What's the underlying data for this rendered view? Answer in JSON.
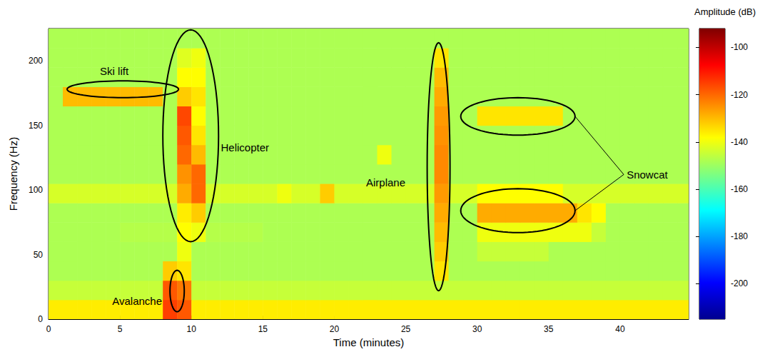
{
  "chart_data": {
    "type": "heatmap",
    "xlabel": "Time (minutes)",
    "ylabel": "Frequency (Hz)",
    "xlim": [
      0,
      44.8
    ],
    "xticks": [
      0,
      5,
      10,
      15,
      20,
      25,
      30,
      35,
      40
    ],
    "ylim": [
      0,
      225
    ],
    "yticks": [
      0,
      50,
      100,
      150,
      200
    ],
    "grid": false,
    "x_bins": [
      0,
      1,
      2,
      3,
      4,
      5,
      6,
      7,
      8,
      9,
      10,
      11,
      12,
      13,
      14,
      15,
      16,
      17,
      18,
      19,
      20,
      21,
      22,
      23,
      24,
      25,
      26,
      27,
      28,
      29,
      30,
      31,
      32,
      33,
      34,
      35,
      36,
      37,
      38,
      39,
      40,
      41,
      42,
      43,
      44,
      44.8
    ],
    "y_bins": [
      0,
      15,
      30,
      45,
      60,
      75,
      90,
      105,
      120,
      135,
      150,
      165,
      180,
      195,
      210,
      225
    ],
    "cells": [
      [
        -136,
        -136,
        -136,
        -136,
        -136,
        -136,
        -136,
        -136,
        -115,
        -118,
        -136,
        -136,
        -136,
        -136,
        -136,
        -136,
        -136,
        -136,
        -136,
        -136,
        -136,
        -136,
        -136,
        -136,
        -136,
        -136,
        -136,
        -136,
        -136,
        -136,
        -136,
        -136,
        -136,
        -136,
        -136,
        -136,
        -136,
        -136,
        -136,
        -136,
        -136,
        -136,
        -136,
        -136,
        -136
      ],
      [
        -145,
        -145,
        -145,
        -145,
        -145,
        -145,
        -145,
        -145,
        -118,
        -122,
        -145,
        -145,
        -145,
        -145,
        -145,
        -145,
        -145,
        -145,
        -145,
        -145,
        -145,
        -145,
        -145,
        -145,
        -145,
        -145,
        -145,
        -145,
        -145,
        -145,
        -145,
        -145,
        -145,
        -145,
        -145,
        -145,
        -145,
        -145,
        -145,
        -145,
        -145,
        -145,
        -145,
        -145,
        -145
      ],
      [
        -148,
        -148,
        -148,
        -148,
        -148,
        -148,
        -148,
        -148,
        -132,
        -135,
        -148,
        -148,
        -148,
        -148,
        -148,
        -148,
        -148,
        -148,
        -148,
        -148,
        -148,
        -148,
        -148,
        -148,
        -148,
        -148,
        -148,
        -135,
        -148,
        -148,
        -148,
        -148,
        -148,
        -148,
        -148,
        -148,
        -148,
        -148,
        -148,
        -148,
        -148,
        -148,
        -148,
        -148,
        -148
      ],
      [
        -148,
        -148,
        -148,
        -148,
        -148,
        -148,
        -148,
        -148,
        -148,
        -140,
        -148,
        -148,
        -148,
        -148,
        -148,
        -148,
        -148,
        -148,
        -148,
        -148,
        -148,
        -148,
        -148,
        -148,
        -148,
        -148,
        -148,
        -132,
        -148,
        -148,
        -145,
        -145,
        -145,
        -145,
        -145,
        -148,
        -148,
        -148,
        -148,
        -148,
        -148,
        -148,
        -148,
        -148,
        -148
      ],
      [
        -148,
        -148,
        -148,
        -148,
        -148,
        -147,
        -147,
        -147,
        -147,
        -138,
        -140,
        -147,
        -147,
        -147,
        -147,
        -148,
        -148,
        -148,
        -148,
        -148,
        -148,
        -148,
        -148,
        -148,
        -148,
        -148,
        -148,
        -130,
        -148,
        -148,
        -140,
        -140,
        -140,
        -140,
        -140,
        -140,
        -140,
        -140,
        -145,
        -148,
        -148,
        -148,
        -148,
        -148,
        -148
      ],
      [
        -148,
        -148,
        -148,
        -148,
        -148,
        -148,
        -148,
        -148,
        -148,
        -136,
        -132,
        -148,
        -148,
        -148,
        -148,
        -148,
        -148,
        -148,
        -148,
        -148,
        -148,
        -148,
        -148,
        -148,
        -148,
        -148,
        -148,
        -128,
        -148,
        -148,
        -128,
        -128,
        -128,
        -128,
        -128,
        -128,
        -128,
        -135,
        -138,
        -148,
        -148,
        -148,
        -148,
        -148,
        -148
      ],
      [
        -143,
        -143,
        -143,
        -143,
        -143,
        -143,
        -143,
        -143,
        -143,
        -128,
        -120,
        -143,
        -143,
        -143,
        -143,
        -143,
        -140,
        -143,
        -143,
        -132,
        -143,
        -143,
        -143,
        -143,
        -143,
        -143,
        -143,
        -126,
        -143,
        -143,
        -138,
        -138,
        -138,
        -138,
        -138,
        -138,
        -143,
        -143,
        -143,
        -143,
        -143,
        -143,
        -143,
        -143,
        -143
      ],
      [
        -148,
        -148,
        -148,
        -148,
        -148,
        -148,
        -148,
        -148,
        -148,
        -125,
        -120,
        -148,
        -148,
        -148,
        -148,
        -148,
        -148,
        -148,
        -148,
        -148,
        -148,
        -148,
        -148,
        -148,
        -148,
        -148,
        -148,
        -124,
        -148,
        -148,
        -148,
        -148,
        -148,
        -148,
        -148,
        -148,
        -148,
        -148,
        -148,
        -148,
        -148,
        -148,
        -148,
        -148,
        -148
      ],
      [
        -148,
        -148,
        -148,
        -148,
        -148,
        -148,
        -148,
        -148,
        -148,
        -120,
        -130,
        -148,
        -148,
        -148,
        -148,
        -148,
        -148,
        -148,
        -148,
        -148,
        -148,
        -148,
        -148,
        -140,
        -148,
        -148,
        -148,
        -124,
        -148,
        -148,
        -148,
        -148,
        -148,
        -148,
        -148,
        -148,
        -148,
        -148,
        -148,
        -148,
        -148,
        -148,
        -148,
        -148,
        -148
      ],
      [
        -148,
        -148,
        -148,
        -148,
        -148,
        -148,
        -148,
        -148,
        -148,
        -118,
        -135,
        -148,
        -148,
        -148,
        -148,
        -148,
        -148,
        -148,
        -148,
        -148,
        -148,
        -148,
        -148,
        -148,
        -148,
        -148,
        -148,
        -125,
        -148,
        -148,
        -148,
        -148,
        -148,
        -148,
        -148,
        -148,
        -148,
        -148,
        -148,
        -148,
        -148,
        -148,
        -148,
        -148,
        -148
      ],
      [
        -148,
        -148,
        -148,
        -148,
        -148,
        -148,
        -148,
        -148,
        -148,
        -116,
        -138,
        -148,
        -148,
        -148,
        -148,
        -148,
        -148,
        -148,
        -148,
        -148,
        -148,
        -148,
        -148,
        -148,
        -148,
        -148,
        -148,
        -126,
        -148,
        -148,
        -135,
        -135,
        -135,
        -135,
        -135,
        -135,
        -148,
        -148,
        -148,
        -148,
        -148,
        -148,
        -148,
        -148,
        -148
      ],
      [
        -148,
        -130,
        -130,
        -130,
        -130,
        -130,
        -130,
        -130,
        -148,
        -132,
        -135,
        -148,
        -148,
        -148,
        -148,
        -148,
        -148,
        -148,
        -148,
        -148,
        -148,
        -148,
        -148,
        -148,
        -148,
        -148,
        -148,
        -128,
        -148,
        -148,
        -148,
        -148,
        -148,
        -148,
        -148,
        -148,
        -148,
        -148,
        -148,
        -148,
        -148,
        -148,
        -148,
        -148,
        -148
      ],
      [
        -148,
        -148,
        -148,
        -148,
        -148,
        -148,
        -148,
        -148,
        -148,
        -138,
        -138,
        -148,
        -148,
        -148,
        -148,
        -148,
        -148,
        -148,
        -148,
        -148,
        -148,
        -148,
        -148,
        -148,
        -148,
        -148,
        -148,
        -130,
        -148,
        -148,
        -148,
        -148,
        -148,
        -148,
        -148,
        -148,
        -148,
        -148,
        -148,
        -148,
        -148,
        -148,
        -148,
        -148,
        -148
      ],
      [
        -148,
        -148,
        -148,
        -148,
        -148,
        -148,
        -148,
        -148,
        -148,
        -142,
        -140,
        -148,
        -148,
        -148,
        -148,
        -148,
        -148,
        -148,
        -148,
        -148,
        -148,
        -148,
        -148,
        -148,
        -148,
        -148,
        -148,
        -135,
        -148,
        -148,
        -148,
        -148,
        -148,
        -148,
        -148,
        -148,
        -148,
        -148,
        -148,
        -148,
        -148,
        -148,
        -148,
        -148,
        -148
      ],
      [
        -148,
        -148,
        -148,
        -148,
        -148,
        -148,
        -148,
        -148,
        -148,
        -148,
        -148,
        -148,
        -148,
        -148,
        -148,
        -148,
        -148,
        -148,
        -148,
        -148,
        -148,
        -148,
        -148,
        -148,
        -148,
        -148,
        -148,
        -148,
        -148,
        -148,
        -148,
        -148,
        -148,
        -148,
        -148,
        -148,
        -148,
        -148,
        -148,
        -148,
        -148,
        -148,
        -148,
        -148,
        -148
      ]
    ],
    "colorbar": {
      "label": "Amplitude (dB)",
      "range": [
        -215,
        -92
      ],
      "ticks": [
        -200,
        -180,
        -160,
        -140,
        -120,
        -100
      ]
    },
    "annotations": [
      {
        "text": "Ski lift",
        "text_at": [
          4.6,
          192
        ],
        "ellipses": [
          [
            5.2,
            178,
            3.9,
            6.5
          ]
        ]
      },
      {
        "text": "Helicopter",
        "text_at": [
          13.75,
          133
        ],
        "ellipses": [
          [
            9.95,
            142,
            1.95,
            82
          ]
        ]
      },
      {
        "text": "Avalanche",
        "text_at": [
          6.2,
          14
        ],
        "ellipses": [
          [
            9.0,
            21.8,
            0.5,
            16
          ]
        ]
      },
      {
        "text": "Airplane",
        "text_at": [
          23.6,
          106
        ],
        "ellipses": [
          [
            27.3,
            118,
            0.8,
            96
          ]
        ]
      },
      {
        "text": "Snowcat",
        "text_at": [
          41.9,
          112
        ],
        "ellipses": [
          [
            32.85,
            157,
            4.0,
            14.5
          ],
          [
            32.85,
            84,
            4.0,
            17
          ]
        ]
      }
    ]
  }
}
